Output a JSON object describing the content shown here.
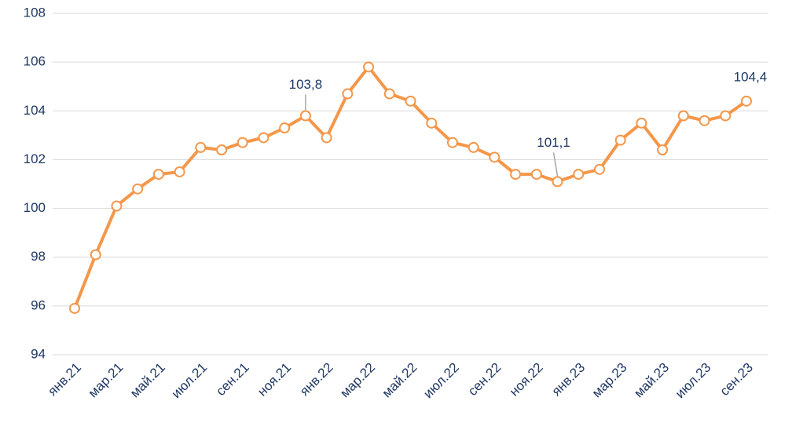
{
  "chart_data": {
    "type": "line",
    "categories": [
      "янв.21",
      null,
      "мар.21",
      null,
      "май.21",
      null,
      "июл.21",
      null,
      "сен.21",
      null,
      "ноя.21",
      null,
      "янв.22",
      null,
      "мар.22",
      null,
      "май.22",
      null,
      "июл.22",
      null,
      "сен.22",
      null,
      "ноя.22",
      null,
      "янв.23",
      null,
      "мар.23",
      null,
      "май.23",
      null,
      "июл.23",
      null,
      "сен.23"
    ],
    "values": [
      95.9,
      98.1,
      100.1,
      100.8,
      101.4,
      101.5,
      102.5,
      102.4,
      102.7,
      102.9,
      103.3,
      103.8,
      102.9,
      104.7,
      105.8,
      104.7,
      104.4,
      103.5,
      102.7,
      102.5,
      102.1,
      101.4,
      101.4,
      101.1,
      101.4,
      101.6,
      102.8,
      103.5,
      102.4,
      103.8,
      103.6,
      103.8,
      104.4
    ],
    "value_labels": [
      null,
      null,
      null,
      null,
      null,
      null,
      null,
      null,
      null,
      null,
      null,
      "103,8",
      null,
      null,
      null,
      null,
      null,
      null,
      null,
      null,
      null,
      null,
      null,
      "101,1",
      null,
      null,
      null,
      null,
      null,
      null,
      null,
      null,
      "104,4"
    ],
    "color": "#f4974a",
    "ylim": [
      94,
      108
    ],
    "yticks": [
      94,
      96,
      98,
      100,
      102,
      104,
      106,
      108
    ],
    "grid": true
  }
}
